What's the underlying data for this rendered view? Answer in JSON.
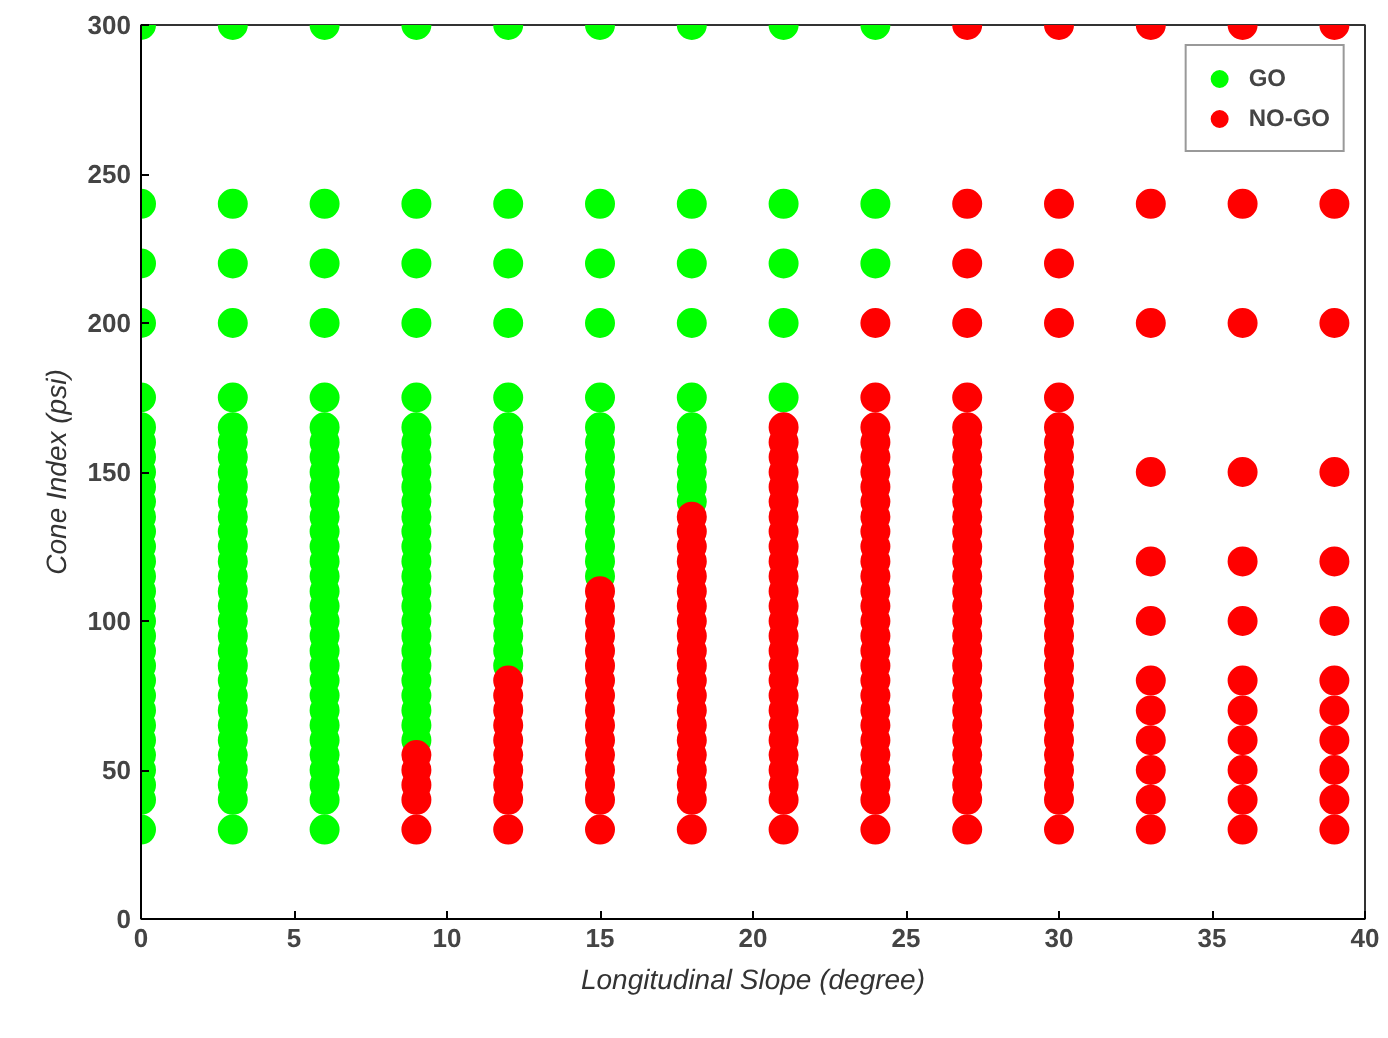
{
  "chart_data": {
    "type": "scatter",
    "xlabel": "Longitudinal Slope (degree)",
    "ylabel": "Cone Index (psi)",
    "xlim": [
      0,
      40
    ],
    "ylim": [
      0,
      300
    ],
    "xticks": [
      0,
      5,
      10,
      15,
      20,
      25,
      30,
      35,
      40
    ],
    "yticks": [
      0,
      50,
      100,
      150,
      200,
      250,
      300
    ],
    "grid": false,
    "legend": "top right",
    "marker": "circle",
    "series": [
      {
        "name": "GO",
        "color": "#00ff00",
        "x": [
          0,
          0,
          0,
          0,
          0,
          0,
          0,
          0,
          0,
          0,
          0,
          0,
          0,
          0,
          0,
          0,
          0,
          0,
          0,
          0,
          0,
          0,
          0,
          0,
          0,
          0,
          0,
          0,
          0,
          0,
          0,
          0,
          3,
          3,
          3,
          3,
          3,
          3,
          3,
          3,
          3,
          3,
          3,
          3,
          3,
          3,
          3,
          3,
          3,
          3,
          3,
          3,
          3,
          3,
          3,
          3,
          3,
          3,
          3,
          3,
          3,
          3,
          3,
          3,
          6,
          6,
          6,
          6,
          6,
          6,
          6,
          6,
          6,
          6,
          6,
          6,
          6,
          6,
          6,
          6,
          6,
          6,
          6,
          6,
          6,
          6,
          6,
          6,
          6,
          6,
          6,
          6,
          6,
          6,
          6,
          6,
          9,
          9,
          9,
          9,
          9,
          9,
          9,
          9,
          9,
          9,
          9,
          9,
          9,
          9,
          9,
          9,
          9,
          9,
          9,
          9,
          9,
          9,
          9,
          9,
          9,
          9,
          9,
          12,
          12,
          12,
          12,
          12,
          12,
          12,
          12,
          12,
          12,
          12,
          12,
          12,
          12,
          12,
          12,
          12,
          12,
          12,
          12,
          12,
          12,
          15,
          15,
          15,
          15,
          15,
          15,
          15,
          15,
          15,
          15,
          15,
          15,
          15,
          15,
          15,
          15,
          18,
          18,
          18,
          18,
          18,
          18,
          18,
          18,
          18,
          18,
          18,
          21,
          21,
          21,
          21,
          21,
          24,
          24,
          24
        ],
        "values": [
          30,
          40,
          45,
          50,
          55,
          60,
          65,
          70,
          75,
          80,
          85,
          90,
          95,
          100,
          105,
          110,
          115,
          120,
          125,
          130,
          135,
          140,
          145,
          150,
          155,
          160,
          165,
          175,
          200,
          220,
          240,
          300,
          30,
          40,
          45,
          50,
          55,
          60,
          65,
          70,
          75,
          80,
          85,
          90,
          95,
          100,
          105,
          110,
          115,
          120,
          125,
          130,
          135,
          140,
          145,
          150,
          155,
          160,
          165,
          175,
          200,
          220,
          240,
          300,
          30,
          40,
          45,
          50,
          55,
          60,
          65,
          70,
          75,
          80,
          85,
          90,
          95,
          100,
          105,
          110,
          115,
          120,
          125,
          130,
          135,
          140,
          145,
          150,
          155,
          160,
          165,
          175,
          200,
          220,
          240,
          300,
          60,
          65,
          70,
          75,
          80,
          85,
          90,
          95,
          100,
          105,
          110,
          115,
          120,
          125,
          130,
          135,
          140,
          145,
          150,
          155,
          160,
          165,
          175,
          200,
          220,
          240,
          300,
          85,
          90,
          95,
          100,
          105,
          110,
          115,
          120,
          125,
          130,
          135,
          140,
          145,
          150,
          155,
          160,
          165,
          175,
          200,
          220,
          240,
          300,
          115,
          120,
          125,
          130,
          135,
          140,
          145,
          150,
          155,
          160,
          165,
          175,
          200,
          220,
          240,
          300,
          140,
          145,
          150,
          155,
          160,
          165,
          175,
          200,
          220,
          240,
          300,
          175,
          200,
          220,
          240,
          300,
          220,
          240,
          300
        ]
      },
      {
        "name": "NO-GO",
        "color": "#ff0000",
        "x": [
          9,
          9,
          9,
          9,
          9,
          12,
          12,
          12,
          12,
          12,
          12,
          12,
          12,
          12,
          12,
          15,
          15,
          15,
          15,
          15,
          15,
          15,
          15,
          15,
          15,
          15,
          15,
          15,
          15,
          15,
          15,
          18,
          18,
          18,
          18,
          18,
          18,
          18,
          18,
          18,
          18,
          18,
          18,
          18,
          18,
          18,
          18,
          18,
          18,
          18,
          18,
          18,
          21,
          21,
          21,
          21,
          21,
          21,
          21,
          21,
          21,
          21,
          21,
          21,
          21,
          21,
          21,
          21,
          21,
          21,
          21,
          21,
          21,
          21,
          21,
          21,
          21,
          21,
          21,
          24,
          24,
          24,
          24,
          24,
          24,
          24,
          24,
          24,
          24,
          24,
          24,
          24,
          24,
          24,
          24,
          24,
          24,
          24,
          24,
          24,
          24,
          24,
          24,
          24,
          24,
          24,
          24,
          24,
          27,
          27,
          27,
          27,
          27,
          27,
          27,
          27,
          27,
          27,
          27,
          27,
          27,
          27,
          27,
          27,
          27,
          27,
          27,
          27,
          27,
          27,
          27,
          27,
          27,
          27,
          27,
          27,
          27,
          27,
          27,
          27,
          30,
          30,
          30,
          30,
          30,
          30,
          30,
          30,
          30,
          30,
          30,
          30,
          30,
          30,
          30,
          30,
          30,
          30,
          30,
          30,
          30,
          30,
          30,
          30,
          30,
          30,
          30,
          30,
          30,
          30,
          30,
          30,
          33,
          33,
          33,
          33,
          33,
          33,
          33,
          33,
          33,
          33,
          33,
          33,
          36,
          36,
          36,
          36,
          36,
          36,
          36,
          36,
          36,
          36,
          36,
          36,
          39,
          39,
          39,
          39,
          39,
          39,
          39,
          39,
          39,
          39,
          39,
          39
        ],
        "values": [
          30,
          40,
          45,
          50,
          55,
          30,
          40,
          45,
          50,
          55,
          60,
          65,
          70,
          75,
          80,
          30,
          40,
          45,
          50,
          55,
          60,
          65,
          70,
          75,
          80,
          85,
          90,
          95,
          100,
          105,
          110,
          30,
          40,
          45,
          50,
          55,
          60,
          65,
          70,
          75,
          80,
          85,
          90,
          95,
          100,
          105,
          110,
          115,
          120,
          125,
          130,
          135,
          30,
          40,
          45,
          50,
          55,
          60,
          65,
          70,
          75,
          80,
          85,
          90,
          95,
          100,
          105,
          110,
          115,
          120,
          125,
          130,
          135,
          140,
          145,
          150,
          155,
          160,
          165,
          30,
          40,
          45,
          50,
          55,
          60,
          65,
          70,
          75,
          80,
          85,
          90,
          95,
          100,
          105,
          110,
          115,
          120,
          125,
          130,
          135,
          140,
          145,
          150,
          155,
          160,
          165,
          175,
          200,
          30,
          40,
          45,
          50,
          55,
          60,
          65,
          70,
          75,
          80,
          85,
          90,
          95,
          100,
          105,
          110,
          115,
          120,
          125,
          130,
          135,
          140,
          145,
          150,
          155,
          160,
          165,
          175,
          200,
          220,
          240,
          300,
          30,
          40,
          45,
          50,
          55,
          60,
          65,
          70,
          75,
          80,
          85,
          90,
          95,
          100,
          105,
          110,
          115,
          120,
          125,
          130,
          135,
          140,
          145,
          150,
          155,
          160,
          165,
          175,
          200,
          220,
          240,
          300,
          30,
          40,
          50,
          60,
          70,
          80,
          100,
          120,
          150,
          200,
          240,
          300,
          30,
          40,
          50,
          60,
          70,
          80,
          100,
          120,
          150,
          200,
          240,
          300,
          30,
          40,
          50,
          60,
          70,
          80,
          100,
          120,
          150,
          200,
          240,
          300
        ]
      }
    ]
  }
}
